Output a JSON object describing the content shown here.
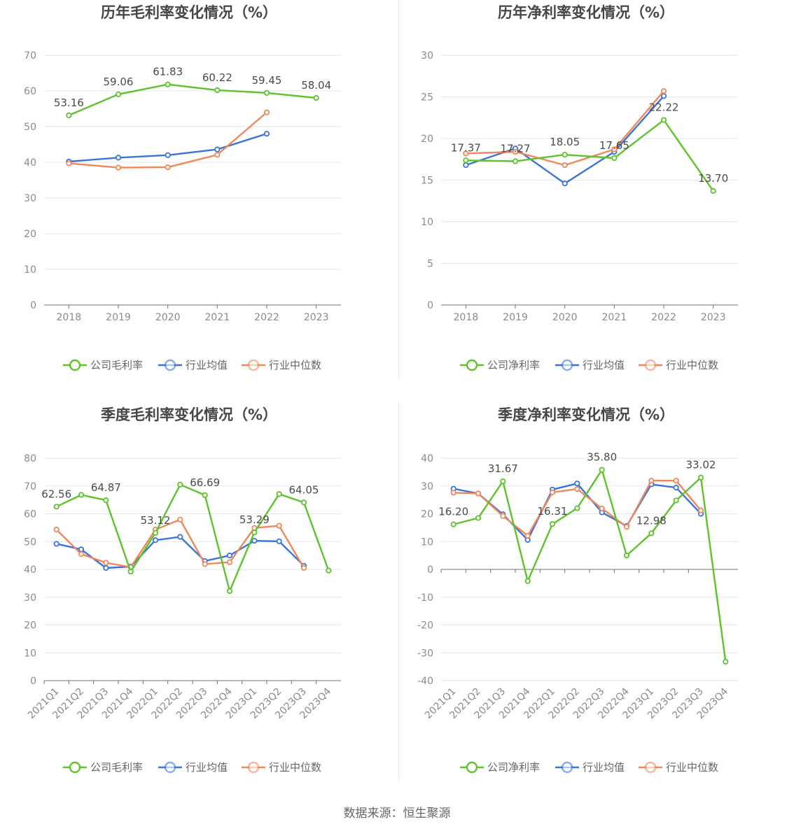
{
  "footer": "数据来源：恒生聚源",
  "colors": {
    "company": "#5dc22c",
    "average": "#3b74d9",
    "median": "#f0875a"
  },
  "chart_data": [
    {
      "type": "line",
      "title": "历年毛利率变化情况（%）",
      "categories": [
        "2018",
        "2019",
        "2020",
        "2021",
        "2022",
        "2023"
      ],
      "ylim": [
        0,
        70
      ],
      "yticks": [
        0,
        10,
        20,
        30,
        40,
        50,
        60,
        70
      ],
      "grid": true,
      "legend": "bottom",
      "series": [
        {
          "name": "公司毛利率",
          "values": [
            53.16,
            59.06,
            61.83,
            60.22,
            59.45,
            58.04
          ],
          "labels": [
            "53.16",
            "59.06",
            "61.83",
            "60.22",
            "59.45",
            "58.04"
          ]
        },
        {
          "name": "行业均值",
          "values": [
            40.2,
            41.3,
            42.0,
            43.6,
            48.0,
            null
          ]
        },
        {
          "name": "行业中位数",
          "values": [
            39.7,
            38.5,
            38.6,
            42.1,
            54.0,
            null
          ]
        }
      ]
    },
    {
      "type": "line",
      "title": "历年净利率变化情况（%）",
      "categories": [
        "2018",
        "2019",
        "2020",
        "2021",
        "2022",
        "2023"
      ],
      "ylim": [
        0,
        30
      ],
      "yticks": [
        0,
        5,
        10,
        15,
        20,
        25,
        30
      ],
      "grid": true,
      "legend": "bottom",
      "series": [
        {
          "name": "公司净利率",
          "values": [
            17.37,
            17.27,
            18.05,
            17.65,
            22.22,
            13.7
          ],
          "labels": [
            "17.37",
            "17.27",
            "18.05",
            "17.65",
            "22.22",
            "13.70"
          ]
        },
        {
          "name": "行业均值",
          "values": [
            16.8,
            18.8,
            14.6,
            18.4,
            25.1,
            null
          ]
        },
        {
          "name": "行业中位数",
          "values": [
            18.2,
            18.4,
            16.8,
            18.7,
            25.7,
            null
          ]
        }
      ]
    },
    {
      "type": "line",
      "title": "季度毛利率变化情况（%）",
      "categories": [
        "2021Q1",
        "2021Q2",
        "2021Q3",
        "2021Q4",
        "2022Q1",
        "2022Q2",
        "2022Q3",
        "2022Q4",
        "2023Q1",
        "2023Q2",
        "2023Q3",
        "2023Q4"
      ],
      "ylim": [
        0,
        80
      ],
      "yticks": [
        0,
        10,
        20,
        30,
        40,
        50,
        60,
        70,
        80
      ],
      "grid": true,
      "legend": "bottom",
      "series": [
        {
          "name": "公司毛利率",
          "values": [
            62.56,
            66.8,
            64.87,
            39.2,
            53.12,
            70.5,
            66.69,
            32.2,
            53.29,
            67.1,
            64.05,
            39.6
          ],
          "labels": [
            "62.56",
            "",
            "64.87",
            "",
            "53.12",
            "",
            "66.69",
            "",
            "53.29",
            "",
            "64.05",
            ""
          ]
        },
        {
          "name": "行业均值",
          "values": [
            49.2,
            47.2,
            40.5,
            41.0,
            50.5,
            51.7,
            43.0,
            45.0,
            50.3,
            50.1,
            41.3,
            null
          ]
        },
        {
          "name": "行业中位数",
          "values": [
            54.3,
            45.5,
            42.4,
            40.8,
            54.3,
            57.9,
            41.9,
            42.6,
            54.9,
            55.7,
            40.5,
            null
          ]
        }
      ]
    },
    {
      "type": "line",
      "title": "季度净利率变化情况（%）",
      "categories": [
        "2021Q1",
        "2021Q2",
        "2021Q3",
        "2021Q4",
        "2022Q1",
        "2022Q2",
        "2022Q3",
        "2022Q4",
        "2023Q1",
        "2023Q2",
        "2023Q3",
        "2023Q4"
      ],
      "ylim": [
        -40,
        40
      ],
      "yticks": [
        -40,
        -30,
        -20,
        -10,
        0,
        10,
        20,
        30,
        40
      ],
      "grid": true,
      "legend": "bottom",
      "series": [
        {
          "name": "公司净利率",
          "values": [
            16.2,
            18.5,
            31.67,
            -4.2,
            16.31,
            22.0,
            35.8,
            5.0,
            12.98,
            24.8,
            33.02,
            -33.2
          ],
          "labels": [
            "16.20",
            "",
            "31.67",
            "",
            "16.31",
            "",
            "35.80",
            "",
            "12.98",
            "",
            "33.02",
            ""
          ]
        },
        {
          "name": "行业均值",
          "values": [
            29.0,
            27.3,
            19.8,
            10.6,
            28.7,
            30.9,
            20.5,
            15.6,
            30.6,
            29.4,
            20.0,
            null
          ]
        },
        {
          "name": "行业中位数",
          "values": [
            27.6,
            27.3,
            19.2,
            12.1,
            27.7,
            28.9,
            21.9,
            15.3,
            31.9,
            31.9,
            21.2,
            null
          ]
        }
      ]
    }
  ]
}
